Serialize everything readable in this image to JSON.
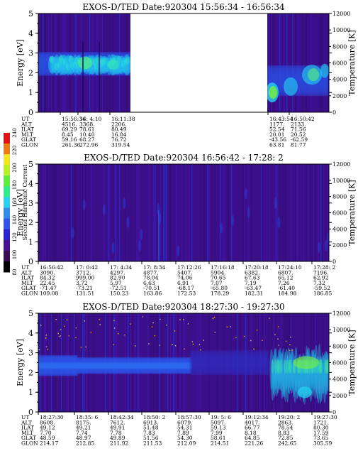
{
  "colorbar": {
    "label": "Second Harmonic Current",
    "ticks": [
      "80",
      "100",
      "120",
      "140",
      "160",
      "180",
      "200",
      "220",
      "240"
    ],
    "colors": [
      "#000000",
      "#3a0a55",
      "#4a109a",
      "#2a22d8",
      "#2f54ef",
      "#2f8df0",
      "#22d4f0",
      "#28f08a",
      "#5af03a",
      "#b8f020",
      "#f0e81a",
      "#f07a10",
      "#e81010"
    ]
  },
  "panels": [
    {
      "title": "EXOS-D/TED   Date:920304   15:56:34 - 16:56:34",
      "ylabel": "Energy [eV]",
      "y2label": "Temperature [K]",
      "ylim": [
        0,
        5
      ],
      "yticks": [
        "0",
        "1",
        "2",
        "3",
        "4",
        "5"
      ],
      "y2lim": [
        0,
        12000
      ],
      "y2ticks": [
        "0",
        "2000",
        "4000",
        "6000",
        "8000",
        "10000",
        "12000"
      ],
      "rowlabels": [
        "UT",
        "ALT",
        "ILAT",
        "MLT",
        "GLAT",
        "GLON"
      ],
      "columns": [
        [
          "15:56:34",
          "4516.",
          "69.29",
          "8.45",
          "59.16",
          "261.36"
        ],
        [
          "16: 4:10",
          "3368.",
          "78.61",
          "10.40",
          "68.27",
          "272.96"
        ],
        [
          "16:11:38",
          "2206.",
          "80.49",
          "16.84",
          "76.72",
          "319.54"
        ],
        [
          "16:43:54",
          "1177.",
          "52.54",
          "20.01",
          "-43.56",
          "63.81"
        ],
        [
          "16:50:42",
          "2133.",
          "71.56",
          "20.52",
          "-62.59",
          "81.77"
        ]
      ]
    },
    {
      "title": "EXOS-D/TED   Date:920304   16:56:42 - 17:28: 2",
      "ylabel": "Energy [eV]",
      "y2label": "Temperature [K]",
      "ylim": [
        0,
        5
      ],
      "yticks": [
        "0",
        "1",
        "2",
        "3",
        "4",
        "5"
      ],
      "y2lim": [
        0,
        12000
      ],
      "y2ticks": [
        "0",
        "2000",
        "4000",
        "6000",
        "8000",
        "10000",
        "12000"
      ],
      "rowlabels": [
        "UT",
        "ALT",
        "ILAT",
        "MLT",
        "GLAT",
        "GLON"
      ],
      "columns": [
        [
          "16:56:42",
          "3090.",
          "84.32",
          "22.45",
          "-71.47",
          "109.08"
        ],
        [
          "17: 0:42",
          "3712.",
          "999.00",
          "3.72",
          "-73.21",
          "131.51"
        ],
        [
          "17: 4:34",
          "4297.",
          "82.90",
          "5.97",
          "-72.51",
          "150.23"
        ],
        [
          "17: 8:34",
          "4877.",
          "78.04",
          "6.63",
          "-70.51",
          "163.86"
        ],
        [
          "17:12:26",
          "5407.",
          "74.06",
          "6.91",
          "-68.17",
          "172.53"
        ],
        [
          "17:16:18",
          "5904.",
          "70.65",
          "7.07",
          "-65.80",
          "178.29"
        ],
        [
          "17:20:18",
          "6382.",
          "67.63",
          "7.19",
          "-63.47",
          "182.31"
        ],
        [
          "17:24:10",
          "6807.",
          "65.12",
          "7.26",
          "-61.40",
          "184.98"
        ],
        [
          "17:28: 2",
          "7196.",
          "62.92",
          "7.32",
          "-59.52",
          "186.85"
        ]
      ]
    },
    {
      "title": "EXOS-D/TED   Date:920304   18:27:30 - 19:27:30",
      "ylabel": "Energy [eV]",
      "y2label": "Temperature [K]",
      "ylim": [
        0,
        5
      ],
      "yticks": [
        "0",
        "1",
        "2",
        "3",
        "4",
        "5"
      ],
      "y2lim": [
        0,
        12000
      ],
      "y2ticks": [
        "0",
        "2000",
        "4000",
        "6000",
        "8000",
        "10000",
        "12000"
      ],
      "rowlabels": [
        "UT",
        "ALT",
        "ILAT",
        "MLT",
        "GLAT",
        "GLON"
      ],
      "columns": [
        [
          "18:27:30",
          "8608.",
          "49.12",
          "7.70",
          "48.59",
          "214.17"
        ],
        [
          "18:35: 6",
          "8175.",
          "49.21",
          "7.74",
          "48.97",
          "212.85"
        ],
        [
          "18:42:34",
          "7612.",
          "49.91",
          "7.78",
          "49.89",
          "211.92"
        ],
        [
          "18:50: 2",
          "6913.",
          "51.48",
          "7.83",
          "51.56",
          "211.53"
        ],
        [
          "18:57:30",
          "6079.",
          "54.31",
          "7.89",
          "54.30",
          "212.09"
        ],
        [
          "19: 5: 6",
          "5097.",
          "59.13",
          "7.99",
          "58.61",
          "214.51"
        ],
        [
          "19:12:34",
          "4017.",
          "66.77",
          "8.18",
          "64.85",
          "221.26"
        ],
        [
          "19:20: 2",
          "2863.",
          "78.54",
          "8.83",
          "72.85",
          "242.65"
        ],
        [
          "19:27:30",
          "1721.",
          "80.30",
          "17.59",
          "73.65",
          "305.59"
        ]
      ]
    }
  ],
  "chart_data": [
    {
      "type": "heatmap",
      "title": "EXOS-D/TED   Date:920304   15:56:34 - 16:56:34",
      "xlabel": "UT",
      "ylabel": "Energy [eV]",
      "y2label": "Temperature [K]",
      "ylim": [
        0,
        5
      ],
      "y2lim": [
        0,
        12000
      ],
      "x": [
        "15:56:34",
        "16: 4:10",
        "16:11:38",
        "16:43:54",
        "16:50:42"
      ],
      "data_gaps": [
        [
          "16:11:38",
          "16:41:30"
        ]
      ],
      "features": [
        {
          "ut_range": [
            "15:59:30",
            "16:11:38"
          ],
          "energy_range": [
            1.9,
            3.0
          ],
          "level": "cyan/green"
        },
        {
          "ut_range": [
            "16:43:00",
            "16:52:30"
          ],
          "energy_range": [
            0.6,
            2.2
          ],
          "level": "cyan/green"
        }
      ]
    },
    {
      "type": "heatmap",
      "title": "EXOS-D/TED   Date:920304   16:56:42 - 17:28: 2",
      "xlabel": "UT",
      "ylabel": "Energy [eV]",
      "y2label": "Temperature [K]",
      "ylim": [
        0,
        5
      ],
      "y2lim": [
        0,
        12000
      ],
      "x": [
        "16:56:42",
        "17: 0:42",
        "17: 4:34",
        "17: 8:34",
        "17:12:26",
        "17:16:18",
        "17:20:18",
        "17:24:10",
        "17:28: 2"
      ],
      "features": [
        {
          "ut_range": [
            "16:56:42",
            "17:28: 2"
          ],
          "energy_range": [
            0,
            5
          ],
          "level": "background purple"
        }
      ]
    },
    {
      "type": "heatmap",
      "title": "EXOS-D/TED   Date:920304   18:27:30 - 19:27:30",
      "xlabel": "UT",
      "ylabel": "Energy [eV]",
      "y2label": "Temperature [K]",
      "ylim": [
        0,
        5
      ],
      "y2lim": [
        0,
        12000
      ],
      "x": [
        "18:27:30",
        "18:35: 6",
        "18:42:34",
        "18:50: 2",
        "18:57:30",
        "19: 5: 6",
        "19:12:34",
        "19:20: 2",
        "19:27:30"
      ],
      "features": [
        {
          "ut_range": [
            "18:27:30",
            "18:53:00"
          ],
          "energy_range": [
            1.8,
            2.9
          ],
          "level": "blue"
        },
        {
          "ut_range": [
            "19:18:00",
            "19:27:30"
          ],
          "energy_range": [
            0,
            3.5
          ],
          "level": "cyan/green"
        }
      ]
    }
  ]
}
